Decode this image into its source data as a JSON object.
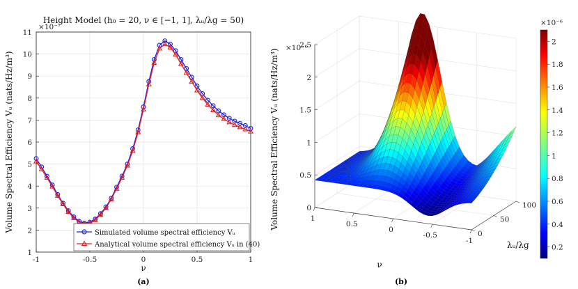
{
  "chart_data": [
    {
      "type": "line",
      "title": "Height Model (h₀ = 20, ν ∈ [−1, 1], λᵤ/λɡ = 50)",
      "xlabel": "ν",
      "ylabel": "Volume Spectral Efficiency Vᵤ (nats/Hz/m³)",
      "exponent": "×10⁻⁷",
      "xlim": [
        -1,
        1
      ],
      "ylim": [
        1,
        11
      ],
      "grid": true,
      "caption": "(a)",
      "x_ticks": [
        "-1",
        "-0.5",
        "0",
        "0.5",
        "1"
      ],
      "y_ticks": [
        "1",
        "2",
        "3",
        "4",
        "5",
        "6",
        "7",
        "8",
        "9",
        "10",
        "11"
      ],
      "legend_position": "bottom-right",
      "x": [
        -1,
        -0.95,
        -0.9,
        -0.85,
        -0.8,
        -0.75,
        -0.7,
        -0.65,
        -0.6,
        -0.55,
        -0.5,
        -0.45,
        -0.4,
        -0.35,
        -0.3,
        -0.25,
        -0.2,
        -0.15,
        -0.1,
        -0.05,
        0,
        0.05,
        0.1,
        0.15,
        0.2,
        0.25,
        0.3,
        0.35,
        0.4,
        0.45,
        0.5,
        0.55,
        0.6,
        0.65,
        0.7,
        0.75,
        0.8,
        0.85,
        0.9,
        0.95,
        1
      ],
      "series": [
        {
          "name": "Simulated volume spectral efficiency Vᵤ",
          "color": "#1f1fe0",
          "marker": "circle",
          "values": [
            5.25,
            4.87,
            4.45,
            4.05,
            3.62,
            3.22,
            2.88,
            2.6,
            2.4,
            2.32,
            2.36,
            2.5,
            2.75,
            3.05,
            3.45,
            3.95,
            4.45,
            5.0,
            5.7,
            6.55,
            7.6,
            8.75,
            9.75,
            10.4,
            10.6,
            10.45,
            10.15,
            9.75,
            9.35,
            8.95,
            8.55,
            8.2,
            7.9,
            7.65,
            7.42,
            7.24,
            7.08,
            6.95,
            6.85,
            6.75,
            6.62
          ]
        },
        {
          "name": "Analytical volume spectral efficiency Vᵤ in (40)",
          "color": "#e02020",
          "marker": "triangle",
          "values": [
            5.12,
            4.77,
            4.38,
            3.98,
            3.56,
            3.18,
            2.83,
            2.55,
            2.36,
            2.28,
            2.32,
            2.46,
            2.7,
            3.0,
            3.4,
            3.88,
            4.38,
            4.93,
            5.6,
            6.45,
            7.48,
            8.62,
            9.6,
            10.25,
            10.45,
            10.3,
            9.98,
            9.55,
            9.15,
            8.75,
            8.35,
            8.0,
            7.7,
            7.45,
            7.22,
            7.05,
            6.9,
            6.78,
            6.68,
            6.58,
            6.48
          ]
        }
      ]
    },
    {
      "type": "surface",
      "caption": "(b)",
      "xlabel": "ν",
      "ylabel": "λᵤ/λɡ",
      "zlabel": "Volume Spectral Efficiency Vᵤ (nats/Hz/m³)",
      "z_exponent": "×10⁻⁶",
      "colorbar_exponent": "×10⁻⁶",
      "x_ticks": [
        "1",
        "0.5",
        "0",
        "-0.5",
        "-1"
      ],
      "y_ticks": [
        "0",
        "50",
        "100"
      ],
      "z_ticks": [
        "0",
        "0.5",
        "1",
        "1.5",
        "2",
        "2.5"
      ],
      "colorbar_ticks": [
        "0.2",
        "0.4",
        "0.6",
        "0.8",
        "1",
        "1.2",
        "1.4",
        "1.6",
        "1.8",
        "2"
      ],
      "nu_range": [
        -1,
        1
      ],
      "ratio_range": [
        0,
        100
      ],
      "z_range": [
        0,
        2.5
      ],
      "colorbar_range": [
        0.1,
        2.1
      ],
      "colormap": "jet",
      "peak": {
        "nu": 0.2,
        "ratio": 100,
        "value": 2.1
      }
    }
  ]
}
